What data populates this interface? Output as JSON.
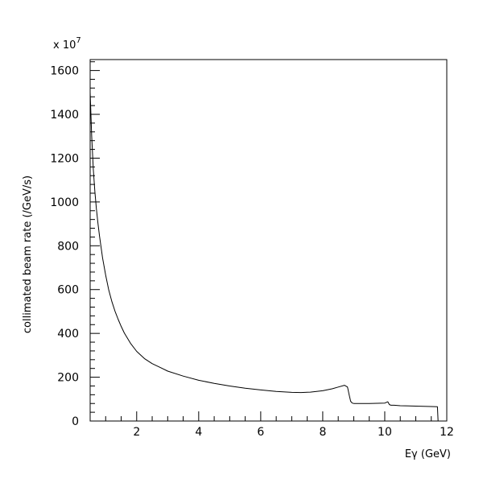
{
  "chart_data": {
    "type": "line",
    "title": "",
    "xlabel": "Eγ (GeV)",
    "ylabel": "collimated beam rate (/GeV/s)",
    "y_multiplier_label": "x 10",
    "y_multiplier_exponent": "7",
    "xlim": [
      0.5,
      12
    ],
    "ylim": [
      0,
      1650
    ],
    "x_ticks": [
      2,
      4,
      6,
      8,
      10,
      12
    ],
    "y_ticks": [
      0,
      200,
      400,
      600,
      800,
      1000,
      1200,
      1400,
      1600
    ],
    "x_tick_labels": [
      "2",
      "4",
      "6",
      "8",
      "10",
      "12"
    ],
    "y_tick_labels": [
      "0",
      "200",
      "400",
      "600",
      "800",
      "1000",
      "1200",
      "1400",
      "1600"
    ],
    "grid": false,
    "series": [
      {
        "x": [
          0.5,
          0.55,
          0.6,
          0.65,
          0.7,
          0.75,
          0.8,
          0.9,
          1.0,
          1.1,
          1.2,
          1.3,
          1.4,
          1.5,
          1.6,
          1.8,
          2.0,
          2.25,
          2.5,
          2.75,
          3.0,
          3.5,
          4.0,
          4.5,
          5.0,
          5.5,
          6.0,
          6.5,
          7.0,
          7.3,
          7.6,
          8.0,
          8.3,
          8.5,
          8.7,
          8.8,
          8.85,
          8.9,
          8.95,
          9.0,
          9.5,
          10.0,
          10.1,
          10.15,
          10.2,
          10.3,
          10.5,
          11.0,
          11.5,
          11.7,
          11.72,
          11.75
        ],
        "y": [
          1500,
          1300,
          1150,
          1050,
          970,
          905,
          845,
          745,
          665,
          598,
          545,
          502,
          465,
          432,
          402,
          355,
          318,
          285,
          262,
          245,
          228,
          205,
          186,
          172,
          160,
          150,
          142,
          135,
          131,
          130,
          132,
          138,
          147,
          155,
          163,
          155,
          120,
          90,
          82,
          80,
          80,
          82,
          88,
          75,
          72,
          72,
          70,
          68,
          66,
          65,
          0,
          0
        ]
      }
    ]
  }
}
